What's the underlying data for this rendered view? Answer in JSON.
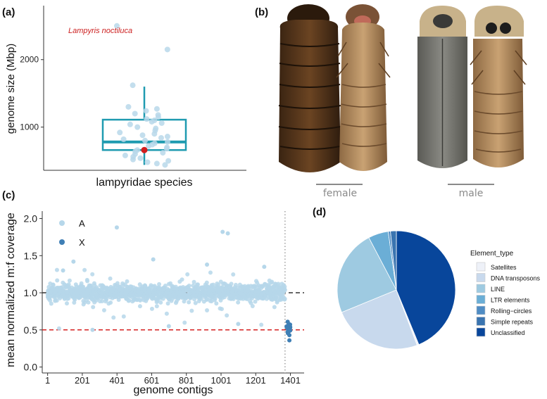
{
  "panel_labels": {
    "a": "(a)",
    "b": "(b)",
    "c": "(c)",
    "d": "(d)"
  },
  "colors": {
    "box": "#1f9bb0",
    "point": "#b9d8ea",
    "highlight": "#d21f1f",
    "autosome": "#b6d7ea",
    "xchrom": "#3f7fb5",
    "ref_black": "#333333",
    "ref_red": "#d62020"
  },
  "photo": {
    "female_label": "female",
    "male_label": "male"
  },
  "chart_data": [
    {
      "id": "a",
      "type": "box",
      "xlabel": "lampyridae species",
      "ylabel": "genome size (Mbp)",
      "ylim": [
        360,
        2800
      ],
      "yticks": [
        1000,
        2000
      ],
      "box": {
        "q1": 660,
        "median": 780,
        "q3": 1110,
        "whisker_low": 440,
        "whisker_high": 1600
      },
      "points": [
        2500,
        2150,
        1620,
        1300,
        1270,
        1240,
        1200,
        1180,
        1150,
        1120,
        1100,
        1080,
        1060,
        1040,
        1000,
        980,
        950,
        920,
        900,
        880,
        860,
        840,
        820,
        800,
        780,
        760,
        740,
        720,
        700,
        680,
        660,
        640,
        620,
        600,
        580,
        560,
        540,
        520,
        500,
        480,
        460,
        440
      ],
      "highlight": {
        "value": 660,
        "label": "Lampyris noctiluca"
      }
    },
    {
      "id": "c",
      "type": "scatter",
      "xlabel": "genome contigs",
      "ylabel": "mean normalized m:f coverage",
      "xlim": [
        -30,
        1480
      ],
      "ylim": [
        -0.08,
        2.1
      ],
      "xticks": [
        1,
        201,
        401,
        601,
        801,
        1001,
        1201,
        1401
      ],
      "yticks": [
        0.0,
        0.5,
        1.0,
        1.5,
        2.0
      ],
      "ytick_labels": [
        "0.0",
        "0.5",
        "1.0",
        "1.5",
        "2.0"
      ],
      "series": [
        {
          "name": "A",
          "n_points": 1370,
          "x_range": [
            1,
            1370
          ],
          "center": 1.0,
          "spread": 0.055
        },
        {
          "name": "X",
          "n_points": 28,
          "x_range": [
            1378,
            1400
          ],
          "center": 0.54,
          "spread": 0.035
        }
      ],
      "outliers": [
        {
          "x": 400,
          "y": 1.88
        },
        {
          "x": 1010,
          "y": 1.82
        },
        {
          "x": 1040,
          "y": 1.8
        },
        {
          "x": 610,
          "y": 1.45
        },
        {
          "x": 150,
          "y": 1.42
        },
        {
          "x": 920,
          "y": 1.38
        },
        {
          "x": 90,
          "y": 1.3
        },
        {
          "x": 1250,
          "y": 1.35
        },
        {
          "x": 260,
          "y": 0.5
        },
        {
          "x": 700,
          "y": 0.55
        },
        {
          "x": 1100,
          "y": 0.58
        },
        {
          "x": 1395,
          "y": 0.36
        },
        {
          "x": 1395,
          "y": 0.43
        }
      ],
      "hlines": [
        {
          "y": 1.0,
          "color": "#333333",
          "dash": true
        },
        {
          "y": 0.5,
          "color": "#d62020",
          "dash": true
        }
      ],
      "vline": {
        "x": 1370,
        "dotted": true
      }
    },
    {
      "id": "d",
      "type": "pie",
      "legend_title": "Element_type",
      "slices": [
        {
          "label": "Satellites",
          "value": 0.5,
          "color": "#eef1f8"
        },
        {
          "label": "DNA transposons",
          "value": 24.5,
          "color": "#c8d9ed"
        },
        {
          "label": "LINE",
          "value": 23.5,
          "color": "#9ecae1"
        },
        {
          "label": "LTR elements",
          "value": 5.5,
          "color": "#6baed6"
        },
        {
          "label": "Rolling−circles",
          "value": 0.6,
          "color": "#4f8cc4"
        },
        {
          "label": "Simple repeats",
          "value": 1.6,
          "color": "#3a74b0"
        },
        {
          "label": "Unclassified",
          "value": 43.8,
          "color": "#08469b"
        }
      ]
    }
  ]
}
